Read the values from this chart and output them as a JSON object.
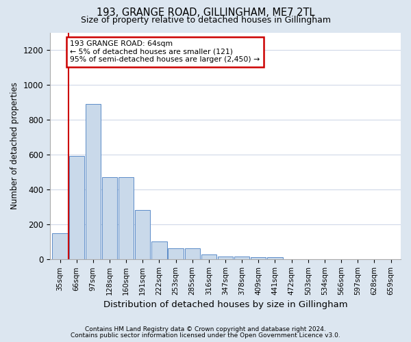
{
  "title1": "193, GRANGE ROAD, GILLINGHAM, ME7 2TL",
  "title2": "Size of property relative to detached houses in Gillingham",
  "xlabel": "Distribution of detached houses by size in Gillingham",
  "ylabel": "Number of detached properties",
  "bar_labels": [
    "35sqm",
    "66sqm",
    "97sqm",
    "128sqm",
    "160sqm",
    "191sqm",
    "222sqm",
    "253sqm",
    "285sqm",
    "316sqm",
    "347sqm",
    "378sqm",
    "409sqm",
    "441sqm",
    "472sqm",
    "503sqm",
    "534sqm",
    "566sqm",
    "597sqm",
    "628sqm",
    "659sqm"
  ],
  "bar_values": [
    152,
    592,
    890,
    470,
    470,
    285,
    105,
    62,
    62,
    28,
    18,
    18,
    12,
    12,
    0,
    0,
    0,
    0,
    0,
    0,
    0
  ],
  "bar_color": "#c9d9ea",
  "bar_edge_color": "#5b8cc8",
  "annotation_text_line1": "193 GRANGE ROAD: 64sqm",
  "annotation_text_line2": "← 5% of detached houses are smaller (121)",
  "annotation_text_line3": "95% of semi-detached houses are larger (2,450) →",
  "annotation_box_color": "#ffffff",
  "annotation_box_edge": "#cc0000",
  "vline_color": "#cc0000",
  "ylim": [
    0,
    1300
  ],
  "yticks": [
    0,
    200,
    400,
    600,
    800,
    1000,
    1200
  ],
  "footer1": "Contains HM Land Registry data © Crown copyright and database right 2024.",
  "footer2": "Contains public sector information licensed under the Open Government Licence v3.0.",
  "outer_bg": "#dce6f0",
  "plot_bg": "#ffffff",
  "grid_color": "#d0d8e8"
}
